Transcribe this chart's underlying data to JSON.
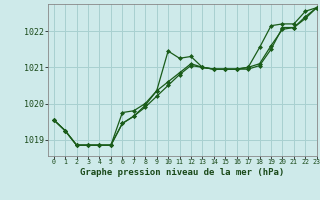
{
  "title": "Graphe pression niveau de la mer (hPa)",
  "background_color": "#ceeaea",
  "grid_color": "#a8d0d0",
  "line_color": "#1a5c1a",
  "xlim": [
    -0.5,
    23
  ],
  "ylim": [
    1018.55,
    1022.75
  ],
  "yticks": [
    1019,
    1020,
    1021,
    1022
  ],
  "xtick_labels": [
    "0",
    "1",
    "2",
    "3",
    "4",
    "5",
    "6",
    "7",
    "8",
    "9",
    "10",
    "11",
    "12",
    "13",
    "14",
    "15",
    "16",
    "17",
    "18",
    "19",
    "20",
    "21",
    "22",
    "23"
  ],
  "series": [
    [
      1019.55,
      1019.25,
      1018.85,
      1018.85,
      1018.85,
      1018.85,
      1019.75,
      1019.8,
      1020.0,
      1020.35,
      1021.45,
      1021.25,
      1021.3,
      1021.0,
      1020.95,
      1020.95,
      1020.95,
      1021.0,
      1021.55,
      1022.15,
      1022.2,
      1022.2,
      1022.55,
      1022.65
    ],
    [
      1019.55,
      1019.25,
      1018.85,
      1018.85,
      1018.85,
      1018.85,
      1019.45,
      1019.65,
      1019.95,
      1020.35,
      1020.6,
      1020.85,
      1021.1,
      1021.0,
      1020.95,
      1020.95,
      1020.95,
      1021.0,
      1021.1,
      1021.6,
      1022.05,
      1022.1,
      1022.35,
      1022.65
    ],
    [
      1019.55,
      1019.25,
      1018.85,
      1018.85,
      1018.85,
      1018.85,
      1019.45,
      1019.65,
      1019.9,
      1020.2,
      1020.5,
      1020.8,
      1021.05,
      1021.0,
      1020.95,
      1020.95,
      1020.95,
      1020.95,
      1021.05,
      1021.5,
      1022.1,
      1022.1,
      1022.4,
      1022.65
    ]
  ]
}
